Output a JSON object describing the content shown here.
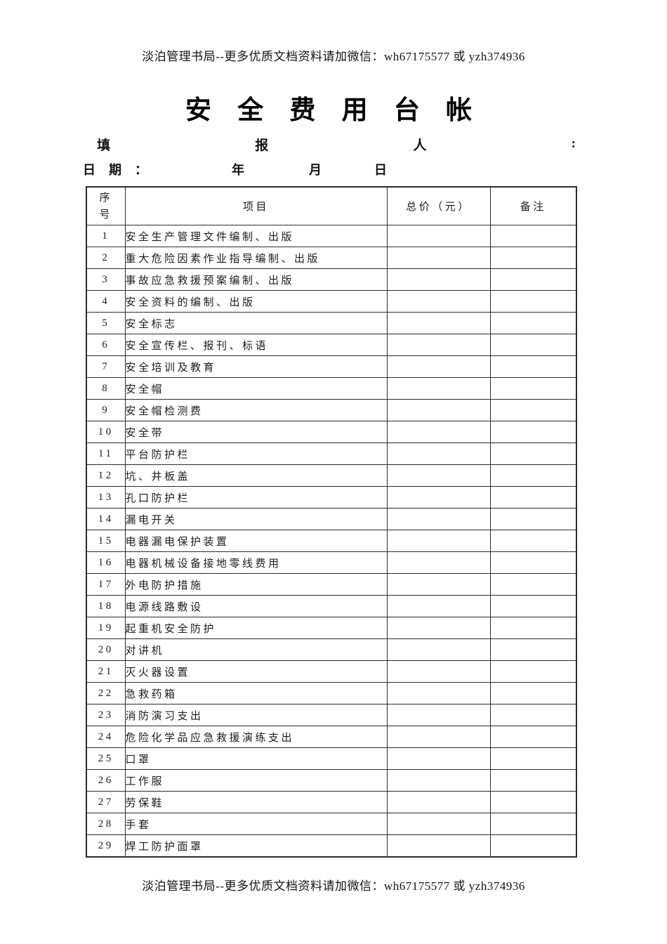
{
  "page": {
    "note_top": "淡泊管理书局--更多优质文档资料请加微信：wh67175577 或 yzh374936",
    "note_bottom": "淡泊管理书局--更多优质文档资料请加微信：wh67175577 或 yzh374936",
    "title": "安 全 费 用 台 帐"
  },
  "form": {
    "filler_tokens": {
      "t0": "填",
      "t1": "报",
      "t2": "人",
      "t3": ":"
    },
    "date": {
      "label": "日期：",
      "year": "年",
      "month": "月",
      "day": "日"
    }
  },
  "table": {
    "headers": {
      "no_line1": "序",
      "no_line2": "号",
      "item": "项目",
      "total": "总价（元）",
      "remark": "备注"
    },
    "rows": [
      {
        "no": "1",
        "item": "安全生产管理文件编制、出版",
        "total": "",
        "remark": ""
      },
      {
        "no": "2",
        "item": "重大危险因素作业指导编制、出版",
        "total": "",
        "remark": ""
      },
      {
        "no": "3",
        "item": "事故应急救援预案编制、出版",
        "total": "",
        "remark": ""
      },
      {
        "no": "4",
        "item": "安全资料的编制、出版",
        "total": "",
        "remark": ""
      },
      {
        "no": "5",
        "item": "安全标志",
        "total": "",
        "remark": ""
      },
      {
        "no": "6",
        "item": "安全宣传栏、报刊、标语",
        "total": "",
        "remark": ""
      },
      {
        "no": "7",
        "item": "安全培训及教育",
        "total": "",
        "remark": ""
      },
      {
        "no": "8",
        "item": "安全帽",
        "total": "",
        "remark": ""
      },
      {
        "no": "9",
        "item": "安全帽检测费",
        "total": "",
        "remark": ""
      },
      {
        "no": "10",
        "item": "安全带",
        "total": "",
        "remark": ""
      },
      {
        "no": "11",
        "item": "平台防护栏",
        "total": "",
        "remark": ""
      },
      {
        "no": "12",
        "item": "坑、井板盖",
        "total": "",
        "remark": ""
      },
      {
        "no": "13",
        "item": "孔口防护栏",
        "total": "",
        "remark": ""
      },
      {
        "no": "14",
        "item": "漏电开关",
        "total": "",
        "remark": ""
      },
      {
        "no": "15",
        "item": "电器漏电保护装置",
        "total": "",
        "remark": ""
      },
      {
        "no": "16",
        "item": "电器机械设备接地零线费用",
        "total": "",
        "remark": ""
      },
      {
        "no": "17",
        "item": "外电防护措施",
        "total": "",
        "remark": ""
      },
      {
        "no": "18",
        "item": "电源线路敷设",
        "total": "",
        "remark": ""
      },
      {
        "no": "19",
        "item": "起重机安全防护",
        "total": "",
        "remark": ""
      },
      {
        "no": "20",
        "item": "对讲机",
        "total": "",
        "remark": ""
      },
      {
        "no": "21",
        "item": "灭火器设置",
        "total": "",
        "remark": ""
      },
      {
        "no": "22",
        "item": "急救药箱",
        "total": "",
        "remark": ""
      },
      {
        "no": "23",
        "item": "消防演习支出",
        "total": "",
        "remark": ""
      },
      {
        "no": "24",
        "item": "危险化学品应急救援演练支出",
        "total": "",
        "remark": ""
      },
      {
        "no": "25",
        "item": "口罩",
        "total": "",
        "remark": ""
      },
      {
        "no": "26",
        "item": "工作服",
        "total": "",
        "remark": ""
      },
      {
        "no": "27",
        "item": "劳保鞋",
        "total": "",
        "remark": ""
      },
      {
        "no": "28",
        "item": "手套",
        "total": "",
        "remark": ""
      },
      {
        "no": "29",
        "item": "焊工防护面罩",
        "total": "",
        "remark": ""
      }
    ]
  }
}
